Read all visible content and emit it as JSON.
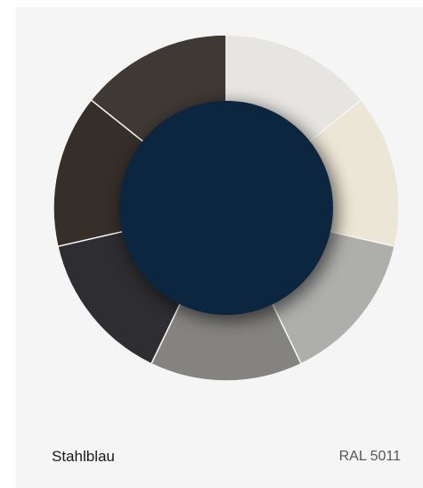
{
  "swatch": {
    "name": "Stahlblau",
    "code": "RAL 5011"
  }
}
